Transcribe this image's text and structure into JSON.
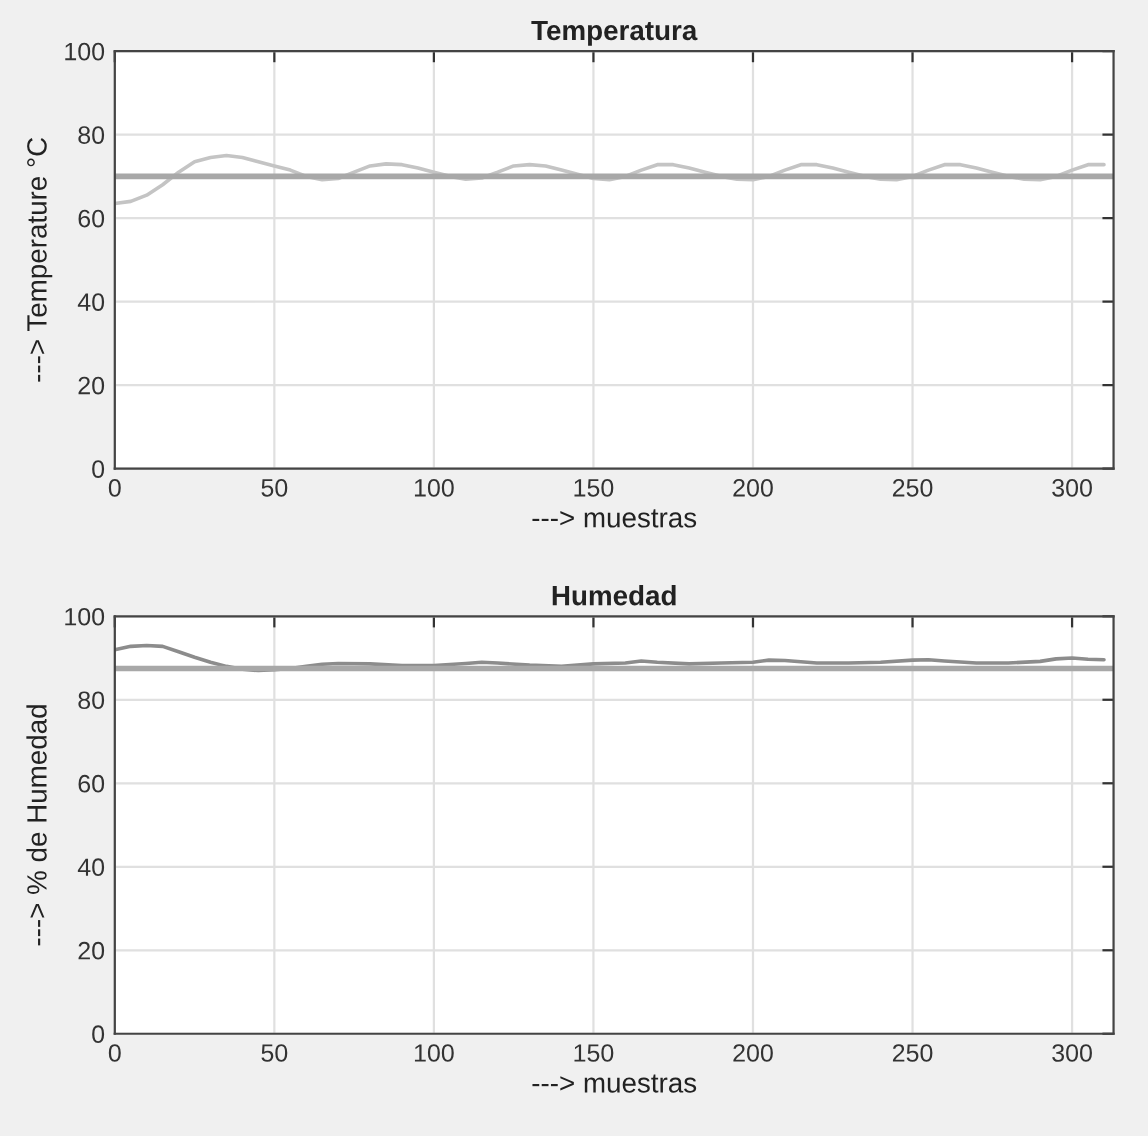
{
  "chart_data": [
    {
      "type": "line",
      "title": "Temperatura",
      "xlabel": "---> muestras",
      "ylabel": "---> Temperature °C",
      "series": [
        {
          "color": "#c4c4c4",
          "x": [
            0,
            5,
            10,
            15,
            20,
            25,
            30,
            35,
            40,
            45,
            50,
            55,
            60,
            65,
            70,
            75,
            80,
            85,
            90,
            95,
            100,
            105,
            110,
            115,
            120,
            125,
            130,
            135,
            140,
            145,
            150,
            155,
            160,
            165,
            170,
            175,
            180,
            185,
            190,
            195,
            200,
            205,
            210,
            215,
            220,
            225,
            230,
            235,
            240,
            245,
            250,
            255,
            260,
            265,
            270,
            275,
            280,
            285,
            290,
            295,
            300,
            305,
            310
          ],
          "values": [
            63.5,
            64,
            65.5,
            68,
            71,
            73.5,
            74.5,
            75,
            74.5,
            73.5,
            72.5,
            71.5,
            70,
            69.2,
            69.5,
            71,
            72.5,
            73,
            72.8,
            72,
            71,
            70,
            69.3,
            69.6,
            71,
            72.5,
            72.8,
            72.5,
            71.5,
            70.5,
            69.5,
            69.2,
            70,
            71.5,
            72.8,
            72.8,
            72,
            71,
            70,
            69.3,
            69.2,
            70,
            71.5,
            72.8,
            72.8,
            72,
            71,
            70,
            69.3,
            69.2,
            70,
            71.5,
            72.8,
            72.8,
            72,
            71,
            70,
            69.3,
            69.2,
            70,
            71.5,
            72.8,
            72.8
          ]
        }
      ],
      "ref_lines": [
        {
          "axis": "y",
          "value": 70,
          "color": "#a8a8a8"
        }
      ],
      "xlim": [
        0,
        313
      ],
      "ylim": [
        0,
        100
      ],
      "xticks": [
        0,
        50,
        100,
        150,
        200,
        250,
        300
      ],
      "yticks": [
        0,
        20,
        40,
        60,
        80,
        100
      ],
      "grid": true
    },
    {
      "type": "line",
      "title": "Humedad",
      "xlabel": "---> muestras",
      "ylabel": "---> % de Humedad",
      "series": [
        {
          "color": "#8c8c8c",
          "x": [
            0,
            5,
            10,
            15,
            20,
            25,
            30,
            35,
            40,
            45,
            50,
            55,
            60,
            65,
            70,
            80,
            90,
            100,
            110,
            115,
            120,
            130,
            140,
            150,
            160,
            165,
            170,
            180,
            190,
            200,
            205,
            210,
            220,
            230,
            240,
            250,
            255,
            260,
            270,
            280,
            290,
            295,
            300,
            305,
            310
          ],
          "values": [
            92,
            92.8,
            93,
            92.8,
            91.5,
            90.2,
            89,
            88,
            87.3,
            87,
            87.2,
            87.5,
            88,
            88.5,
            88.7,
            88.6,
            88.2,
            88.2,
            88.7,
            89,
            88.8,
            88.3,
            88,
            88.6,
            88.8,
            89.3,
            89,
            88.6,
            88.8,
            89,
            89.5,
            89.4,
            88.8,
            88.8,
            89,
            89.5,
            89.6,
            89.3,
            88.8,
            88.8,
            89.2,
            89.8,
            90,
            89.7,
            89.6
          ]
        }
      ],
      "ref_lines": [
        {
          "axis": "y",
          "value": 87.5,
          "color": "#a8a8a8"
        }
      ],
      "xlim": [
        0,
        313
      ],
      "ylim": [
        0,
        100
      ],
      "xticks": [
        0,
        50,
        100,
        150,
        200,
        250,
        300
      ],
      "yticks": [
        0,
        20,
        40,
        60,
        80,
        100
      ],
      "grid": true
    }
  ]
}
